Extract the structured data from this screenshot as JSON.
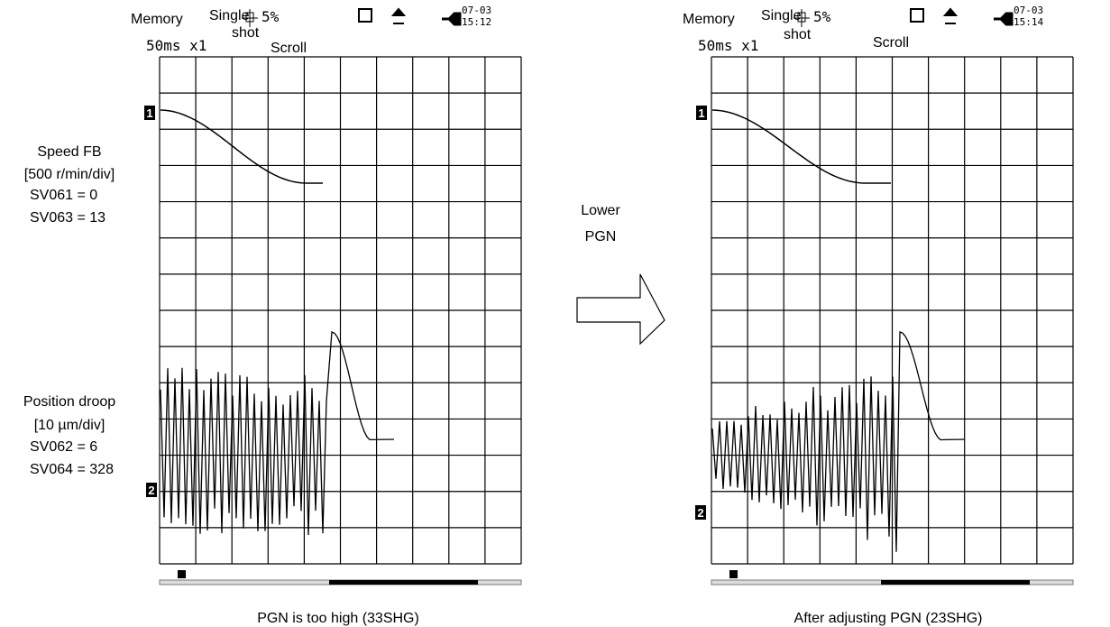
{
  "screens": [
    {
      "header": {
        "mode": "Memory",
        "trigger_line1": "Single",
        "trigger_line2": "shot",
        "pretrigger": "5%",
        "display": "Scroll",
        "timebase": "50ms x1",
        "date": "07-03",
        "time": "15:12"
      },
      "channel_markers": [
        "1",
        "2"
      ],
      "caption": "PGN is too high (33SHG)"
    },
    {
      "header": {
        "mode": "Memory",
        "trigger_line1": "Single",
        "trigger_line2": "shot",
        "pretrigger": "5%",
        "display": "Scroll",
        "timebase": "50ms x1",
        "date": "07-03",
        "time": "15:14"
      },
      "channel_markers": [
        "1",
        "2"
      ],
      "caption": "After adjusting PGN (23SHG)"
    }
  ],
  "channel_labels": {
    "ch1": [
      "Speed FB",
      "[500 r/min/div]",
      "SV061 = 0",
      "SV063 = 13"
    ],
    "ch2": [
      "Position droop",
      "[10 µm/div]",
      "SV062 = 6",
      "SV064 = 328"
    ]
  },
  "arrow_label": [
    "Lower",
    "PGN"
  ]
}
